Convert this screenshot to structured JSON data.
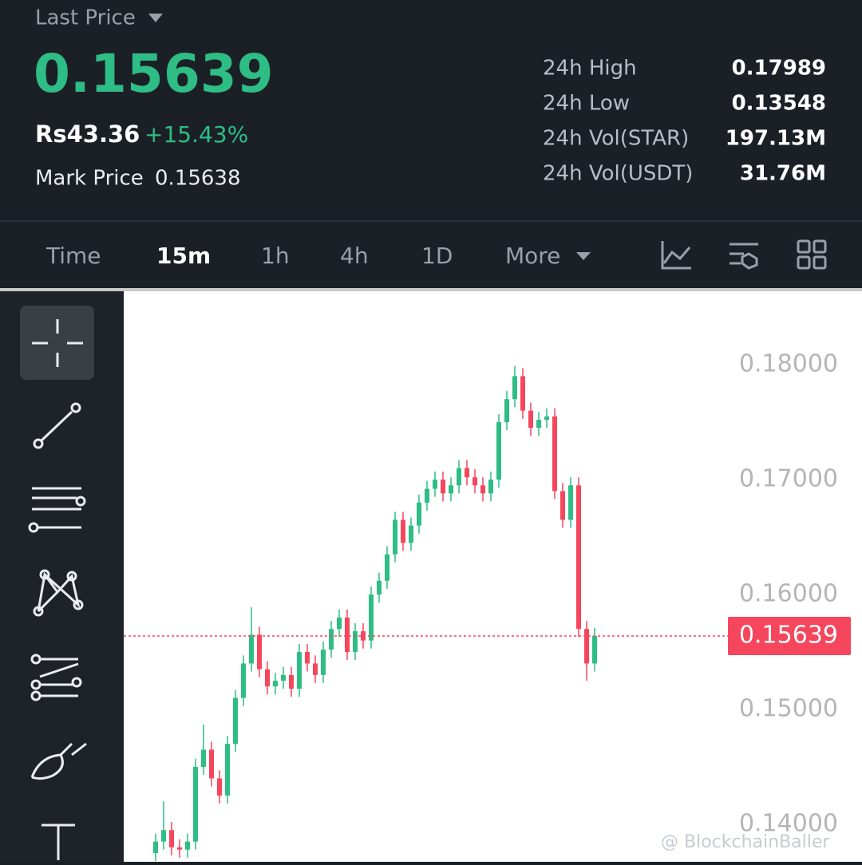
{
  "header": {
    "last_price_label": "Last Price",
    "last_price": "0.15639",
    "fiat_price": "Rs43.36",
    "change": "+15.43%",
    "mark_price_label": "Mark Price",
    "mark_price": "0.15638",
    "stats": [
      {
        "label": "24h High",
        "value": "0.17989"
      },
      {
        "label": "24h Low",
        "value": "0.13548"
      },
      {
        "label": "24h Vol(STAR)",
        "value": "197.13M"
      },
      {
        "label": "24h Vol(USDT)",
        "value": "31.76M"
      }
    ]
  },
  "toolbar": {
    "intervals": [
      "Time",
      "15m",
      "1h",
      "4h",
      "1D",
      "More"
    ]
  },
  "chart_data": {
    "type": "candlestick",
    "up_color": "#2ebd85",
    "down_color": "#f6465d",
    "open": [
      0.1375,
      0.1385,
      0.1395,
      0.138,
      0.1378,
      0.1385,
      0.145,
      0.1465,
      0.144,
      0.1425,
      0.147,
      0.151,
      0.154,
      0.1565,
      0.1535,
      0.152,
      0.1525,
      0.153,
      0.1518,
      0.155,
      0.154,
      0.153,
      0.1552,
      0.157,
      0.158,
      0.155,
      0.1568,
      0.156,
      0.16,
      0.1612,
      0.1635,
      0.1665,
      0.1645,
      0.166,
      0.168,
      0.1692,
      0.17,
      0.1688,
      0.1695,
      0.171,
      0.1702,
      0.1695,
      0.1688,
      0.17,
      0.175,
      0.177,
      0.179,
      0.176,
      0.1745,
      0.1752,
      0.1755,
      0.169,
      0.1665,
      0.1695,
      0.157,
      0.154
    ],
    "high": [
      0.1392,
      0.142,
      0.1402,
      0.1387,
      0.1392,
      0.1457,
      0.1487,
      0.1472,
      0.1447,
      0.1477,
      0.1517,
      0.1547,
      0.1589,
      0.1572,
      0.1542,
      0.1532,
      0.1537,
      0.1537,
      0.1557,
      0.1557,
      0.1547,
      0.1559,
      0.1577,
      0.1587,
      0.1587,
      0.1575,
      0.1575,
      0.1607,
      0.1619,
      0.1642,
      0.1672,
      0.1672,
      0.1667,
      0.1687,
      0.1699,
      0.1707,
      0.1707,
      0.1702,
      0.1717,
      0.1717,
      0.1709,
      0.1702,
      0.1707,
      0.1757,
      0.1777,
      0.1799,
      0.1797,
      0.1767,
      0.1759,
      0.1762,
      0.1762,
      0.1697,
      0.1702,
      0.1702,
      0.1577,
      0.1571
    ],
    "low": [
      0.1368,
      0.1378,
      0.1373,
      0.1371,
      0.1371,
      0.1378,
      0.1443,
      0.1433,
      0.1418,
      0.1418,
      0.1463,
      0.1503,
      0.1533,
      0.1528,
      0.1513,
      0.1513,
      0.1518,
      0.1511,
      0.1511,
      0.1533,
      0.1523,
      0.1523,
      0.1545,
      0.1563,
      0.1543,
      0.1543,
      0.1553,
      0.1553,
      0.1593,
      0.1605,
      0.1628,
      0.1638,
      0.1638,
      0.1653,
      0.1673,
      0.1685,
      0.1681,
      0.1681,
      0.1688,
      0.1695,
      0.1688,
      0.1681,
      0.1681,
      0.1693,
      0.1743,
      0.1763,
      0.1753,
      0.1738,
      0.1738,
      0.1745,
      0.1683,
      0.1658,
      0.1658,
      0.1563,
      0.1525,
      0.1533
    ],
    "close": [
      0.1385,
      0.1395,
      0.138,
      0.1378,
      0.1385,
      0.145,
      0.1465,
      0.144,
      0.1425,
      0.147,
      0.151,
      0.154,
      0.1565,
      0.1535,
      0.152,
      0.1525,
      0.153,
      0.1518,
      0.155,
      0.154,
      0.153,
      0.1552,
      0.157,
      0.158,
      0.155,
      0.1568,
      0.156,
      0.16,
      0.1612,
      0.1635,
      0.1665,
      0.1645,
      0.166,
      0.168,
      0.1692,
      0.17,
      0.1688,
      0.1695,
      0.171,
      0.1702,
      0.1695,
      0.1688,
      0.17,
      0.175,
      0.177,
      0.179,
      0.176,
      0.1745,
      0.1752,
      0.1755,
      0.169,
      0.1665,
      0.1695,
      0.157,
      0.154,
      0.15639
    ],
    "ylim": [
      0.13674,
      0.18639
    ],
    "yticks": [
      {
        "value": 0.14,
        "label": "0.14000"
      },
      {
        "value": 0.15,
        "label": "0.15000"
      },
      {
        "value": 0.16,
        "label": "0.16000"
      },
      {
        "value": 0.17,
        "label": "0.17000"
      },
      {
        "value": 0.18,
        "label": "0.18000"
      }
    ],
    "last_price_line": {
      "value": 0.15639,
      "label": "0.15639",
      "color": "#f6465d"
    }
  },
  "watermark": "@ BlockchainBaller"
}
